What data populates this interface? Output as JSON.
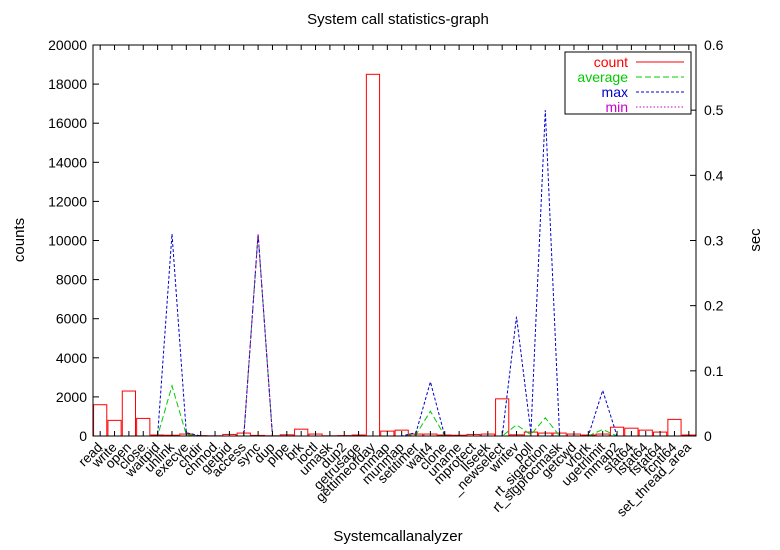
{
  "chart_data": {
    "type": "bar",
    "title": "System call statistics-graph",
    "xlabel": "Systemcallanalyzer",
    "ylabel": "counts",
    "y2label": "sec",
    "ylim": [
      0,
      20000
    ],
    "y2lim": [
      0,
      0.6
    ],
    "yticks": [
      "0",
      "2000",
      "4000",
      "6000",
      "8000",
      "10000",
      "12000",
      "14000",
      "16000",
      "18000",
      "20000"
    ],
    "y2ticks": [
      "0",
      "0.1",
      "0.2",
      "0.3",
      "0.4",
      "0.5",
      "0.6"
    ],
    "legend_position": "top-right",
    "categories": [
      "read",
      "write",
      "open",
      "close",
      "waitpid",
      "unlink",
      "execve",
      "chdir",
      "chmod",
      "getpid",
      "access",
      "sync",
      "dup",
      "pipe",
      "brk",
      "ioctl",
      "umask",
      "dup2",
      "getrusage",
      "gettimeofday",
      "mmap",
      "munmap",
      "setitimer",
      "wait4",
      "clone",
      "uname",
      "mprotect",
      "llseek",
      "_newselect",
      "writev",
      "poll",
      "rt_sigaction",
      "rt_sigprocmask",
      "getcwd",
      "vfork",
      "ugetrlimit",
      "mmap2",
      "stat64",
      "lstat64",
      "fstat64",
      "fcntl64",
      "set_thread_area"
    ],
    "series": [
      {
        "name": "count",
        "color": "#ff0000",
        "style": "bars",
        "axis": "left",
        "values": [
          1600,
          800,
          2300,
          900,
          50,
          40,
          100,
          20,
          10,
          80,
          150,
          30,
          10,
          60,
          350,
          100,
          10,
          20,
          50,
          18500,
          250,
          300,
          100,
          100,
          50,
          40,
          80,
          100,
          1900,
          60,
          200,
          150,
          150,
          100,
          50,
          100,
          450,
          400,
          300,
          200,
          850,
          50
        ]
      },
      {
        "name": "average",
        "color": "#00cc00",
        "style": "dashed",
        "axis": "right",
        "values": [
          0,
          0,
          0,
          0,
          0,
          0.077,
          0.002,
          0,
          0,
          0,
          0,
          0.31,
          0,
          0,
          0,
          0,
          0,
          0,
          0,
          0,
          0,
          0,
          0.002,
          0.038,
          0,
          0,
          0,
          0,
          0,
          0.017,
          0.002,
          0.028,
          0,
          0,
          0,
          0.01,
          0,
          0,
          0,
          0,
          0,
          0
        ]
      },
      {
        "name": "max",
        "color": "#0000cc",
        "style": "dashed",
        "axis": "right",
        "values": [
          0,
          0,
          0,
          0,
          0,
          0.31,
          0.005,
          0,
          0,
          0,
          0,
          0.31,
          0,
          0,
          0,
          0,
          0,
          0,
          0,
          0,
          0,
          0,
          0.005,
          0.083,
          0,
          0,
          0,
          0,
          0,
          0.183,
          0.005,
          0.5,
          0,
          0,
          0,
          0.07,
          0,
          0,
          0,
          0,
          0,
          0
        ]
      },
      {
        "name": "min",
        "color": "#cc00cc",
        "style": "dotted",
        "axis": "right",
        "values": [
          0,
          0,
          0,
          0,
          0,
          0,
          0,
          0,
          0,
          0,
          0,
          0.31,
          0,
          0,
          0,
          0,
          0,
          0,
          0,
          0,
          0,
          0,
          0,
          0,
          0,
          0,
          0,
          0,
          0,
          0,
          0,
          0,
          0,
          0,
          0,
          0,
          0,
          0,
          0,
          0,
          0,
          0
        ]
      }
    ]
  }
}
